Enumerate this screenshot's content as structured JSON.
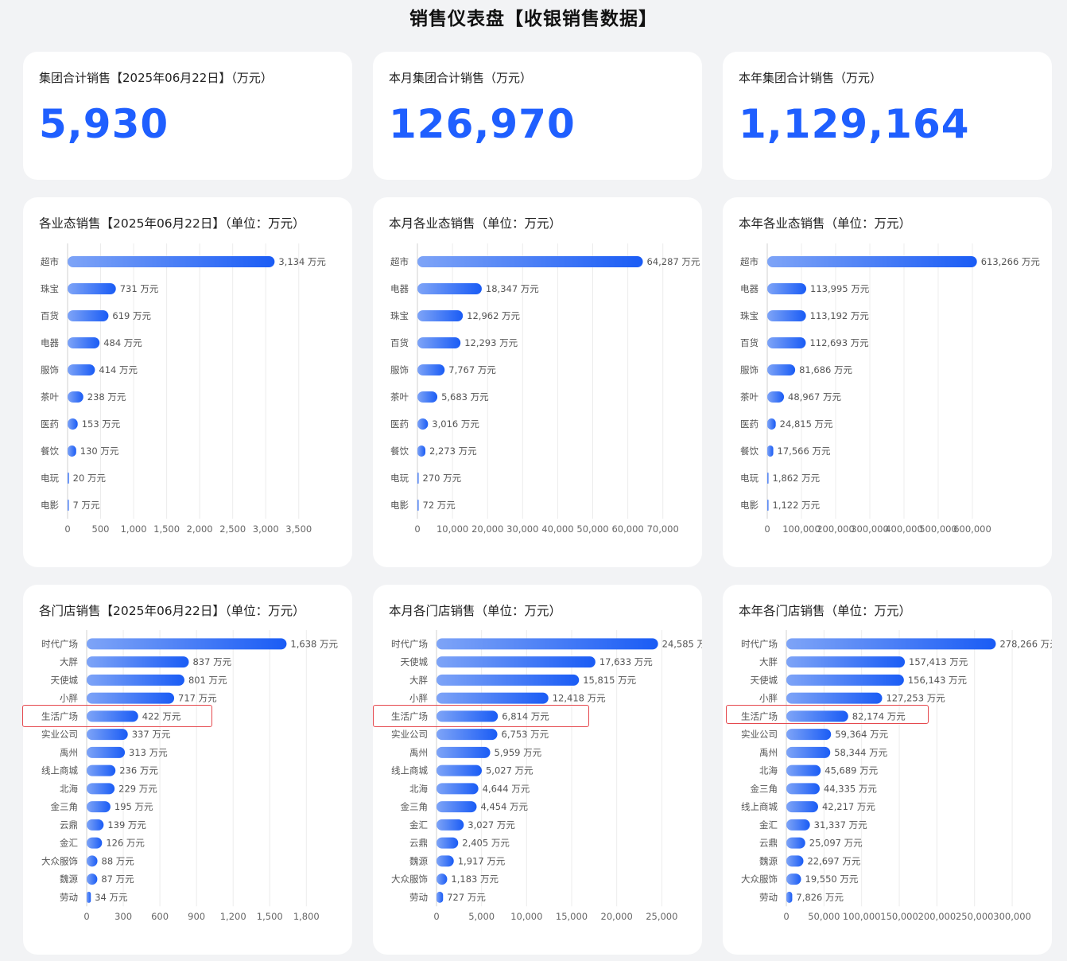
{
  "page_title": "销售仪表盘【收银销售数据】",
  "kpis": [
    {
      "title": "集团合计销售【2025年06月22日】（万元）",
      "value": "5,930"
    },
    {
      "title": "本月集团合计销售（万元）",
      "value": "126,970"
    },
    {
      "title": "本年集团合计销售（万元）",
      "value": "1,129,164"
    }
  ],
  "colors": {
    "accent": "#1f5fff",
    "bar_start": "#7ea4f7",
    "bar_end": "#1a5cf5",
    "highlight": "#e5484d"
  },
  "value_suffix": " 万元",
  "chart_data": [
    {
      "type": "bar",
      "orientation": "horizontal",
      "title": "各业态销售【2025年06月22日】（单位：万元）",
      "categories": [
        "超市",
        "珠宝",
        "百货",
        "电器",
        "服饰",
        "茶叶",
        "医药",
        "餐饮",
        "电玩",
        "电影"
      ],
      "values": [
        3134,
        731,
        619,
        484,
        414,
        238,
        153,
        130,
        20,
        7
      ],
      "ticks": [
        0,
        500,
        1000,
        1500,
        2000,
        2500,
        3000,
        3500
      ],
      "xlim": [
        0,
        3900
      ],
      "grid": true,
      "highlight": null
    },
    {
      "type": "bar",
      "orientation": "horizontal",
      "title": "本月各业态销售（单位：万元）",
      "categories": [
        "超市",
        "电器",
        "珠宝",
        "百货",
        "服饰",
        "茶叶",
        "医药",
        "餐饮",
        "电玩",
        "电影"
      ],
      "values": [
        64287,
        18347,
        12962,
        12293,
        7767,
        5683,
        3016,
        2273,
        270,
        72
      ],
      "ticks": [
        0,
        10000,
        20000,
        30000,
        40000,
        50000,
        60000,
        70000
      ],
      "xlim": [
        0,
        78000
      ],
      "grid": true,
      "highlight": null
    },
    {
      "type": "bar",
      "orientation": "horizontal",
      "title": "本年各业态销售（单位：万元）",
      "categories": [
        "超市",
        "电器",
        "珠宝",
        "百货",
        "服饰",
        "茶叶",
        "医药",
        "餐饮",
        "电玩",
        "电影"
      ],
      "values": [
        613266,
        113995,
        113192,
        112693,
        81686,
        48967,
        24815,
        17566,
        1862,
        1122
      ],
      "ticks": [
        0,
        100000,
        200000,
        300000,
        400000,
        500000,
        600000
      ],
      "xlim": [
        0,
        700000
      ],
      "grid": true,
      "highlight": null
    },
    {
      "type": "bar",
      "orientation": "horizontal",
      "title": "各门店销售【2025年06月22日】（单位：万元）",
      "categories": [
        "时代广场",
        "大胖",
        "天使城",
        "小胖",
        "生活广场",
        "实业公司",
        "禹州",
        "线上商城",
        "北海",
        "金三角",
        "云鼎",
        "金汇",
        "大众服饰",
        "魏源",
        "劳动"
      ],
      "values": [
        1638,
        837,
        801,
        717,
        422,
        337,
        313,
        236,
        229,
        195,
        139,
        126,
        88,
        87,
        34
      ],
      "ticks": [
        0,
        300,
        600,
        900,
        1200,
        1500,
        1800
      ],
      "xlim": [
        0,
        2000
      ],
      "grid": true,
      "highlight": "生活广场"
    },
    {
      "type": "bar",
      "orientation": "horizontal",
      "title": "本月各门店销售（单位：万元）",
      "categories": [
        "时代广场",
        "天使城",
        "大胖",
        "小胖",
        "生活广场",
        "实业公司",
        "禹州",
        "线上商城",
        "北海",
        "金三角",
        "金汇",
        "云鼎",
        "魏源",
        "大众服饰",
        "劳动"
      ],
      "values": [
        24585,
        17633,
        15815,
        12418,
        6814,
        6753,
        5959,
        5027,
        4644,
        4454,
        3027,
        2405,
        1917,
        1183,
        727
      ],
      "ticks": [
        0,
        5000,
        10000,
        15000,
        20000,
        25000
      ],
      "xlim": [
        0,
        28500
      ],
      "grid": true,
      "highlight": "生活广场"
    },
    {
      "type": "bar",
      "orientation": "horizontal",
      "title": "本年各门店销售（单位：万元）",
      "categories": [
        "时代广场",
        "大胖",
        "天使城",
        "小胖",
        "生活广场",
        "实业公司",
        "禹州",
        "北海",
        "金三角",
        "线上商城",
        "金汇",
        "云鼎",
        "魏源",
        "大众服饰",
        "劳动"
      ],
      "values": [
        278266,
        157413,
        156143,
        127253,
        82174,
        59364,
        58344,
        45689,
        44335,
        42217,
        31337,
        25097,
        22697,
        19550,
        7826
      ],
      "ticks": [
        0,
        50000,
        100000,
        150000,
        200000,
        250000,
        300000
      ],
      "xlim": [
        0,
        320000
      ],
      "grid": true,
      "highlight": "生活广场"
    }
  ]
}
